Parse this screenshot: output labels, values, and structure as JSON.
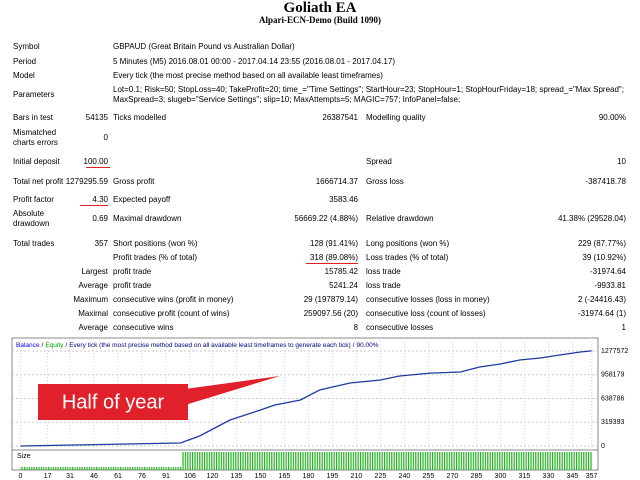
{
  "header": {
    "title": "Goliath EA",
    "subtitle": "Alpari-ECN-Demo (Build 1090)"
  },
  "report": {
    "rows": [
      [
        "Symbol",
        null,
        "GBPAUD (Great Britain Pound vs Australian Dollar)"
      ],
      [
        "Period",
        null,
        "5 Minutes (M5) 2016.08.01 00:00 - 2017.04.14 23:55 (2016.08.01 - 2017.04.17)"
      ],
      [
        "Model",
        null,
        "Every tick (the most precise method based on all available least timeframes)"
      ],
      [
        "Parameters",
        null,
        "Lot=0.1; Risk=50; StopLoss=40; TakeProfit=20; time_=\"Time Settings\"; StartHour=23; StopHour=1; StopHourFriday=18; spread_=\"Max Spread\"; MaxSpread=3; slugeb=\"Service Settings\"; slip=10; MaxAttempts=5; MAGIC=757; InfoPanel=false;"
      ],
      [
        "Bars in test",
        "54135",
        "Ticks modelled",
        "26387541",
        "Modelling quality",
        "90.00%"
      ],
      [
        "Mismatched charts errors",
        "0",
        null,
        null,
        null,
        null
      ],
      [
        "Initial deposit",
        "100.00",
        null,
        null,
        "Spread",
        "10"
      ],
      [
        "Total net profit",
        "1279295.59",
        "Gross profit",
        "1666714.37",
        "Gross loss",
        "-387418.78"
      ],
      [
        "Profit factor",
        "4.30",
        "Expected payoff",
        "3583.46",
        null,
        null
      ],
      [
        "Absolute drawdown",
        "0.69",
        "Maximal drawdown",
        "56669.22 (4.88%)",
        "Relative drawdown",
        "41.38% (29528.04)"
      ],
      [
        "Total trades",
        "357",
        "Short positions (won %)",
        "128 (91.41%)",
        "Long positions (won %)",
        "229 (87.77%)"
      ],
      [
        null,
        null,
        "Profit trades (% of total)",
        "318 (89.08%)",
        "Loss trades (% of total)",
        "39 (10.92%)"
      ],
      [
        null,
        "Largest",
        "profit trade",
        "15785.42",
        "loss trade",
        "-31974.64"
      ],
      [
        null,
        "Average",
        "profit trade",
        "5241.24",
        "loss trade",
        "-9933.81"
      ],
      [
        null,
        "Maximum",
        "consecutive wins (profit in money)",
        "29 (197879.14)",
        "consecutive losses (loss in money)",
        "2 (-24416.43)"
      ],
      [
        null,
        "Maximal",
        "consecutive profit (count of wins)",
        "259097.56 (20)",
        "consecutive loss (count of losses)",
        "-31974.64 (1)"
      ],
      [
        null,
        "Average",
        "consecutive wins",
        "8",
        "consecutive losses",
        "1"
      ]
    ]
  },
  "graph": {
    "type": "line",
    "legend": {
      "items": [
        {
          "name": "Balance",
          "color": "#0000ff"
        },
        {
          "name": "Equity",
          "color": "#00a000"
        },
        {
          "name": "Every tick (the most precise method based on all available least timeframes to generate each tick)",
          "color": "#000080"
        },
        {
          "name": "90.00%",
          "color": "#000080"
        }
      ],
      "separator": "/"
    },
    "size_label": "Size",
    "annotation": "Half of year",
    "x": [
      0,
      100,
      112,
      131,
      150,
      159,
      175,
      187,
      206,
      225,
      237,
      256,
      275,
      287,
      300,
      312,
      325,
      337,
      350,
      357
    ],
    "series": [
      {
        "color": "#1f3a9e",
        "values": [
          0,
          40000,
          134000,
          350000,
          484000,
          551000,
          618000,
          753000,
          847000,
          887000,
          941000,
          981000,
          995000,
          1062000,
          1103000,
          1157000,
          1183000,
          1224000,
          1264000,
          1279296
        ]
      }
    ],
    "xlim": [
      -4,
      361
    ],
    "ylim": [
      0,
      1425500
    ],
    "xticks": [
      0,
      17,
      31,
      46,
      61,
      76,
      91,
      106,
      120,
      135,
      150,
      165,
      180,
      195,
      210,
      225,
      240,
      255,
      270,
      285,
      300,
      315,
      330,
      345,
      357
    ],
    "yticks": [
      0,
      319393,
      638786,
      958179,
      1277572
    ]
  }
}
